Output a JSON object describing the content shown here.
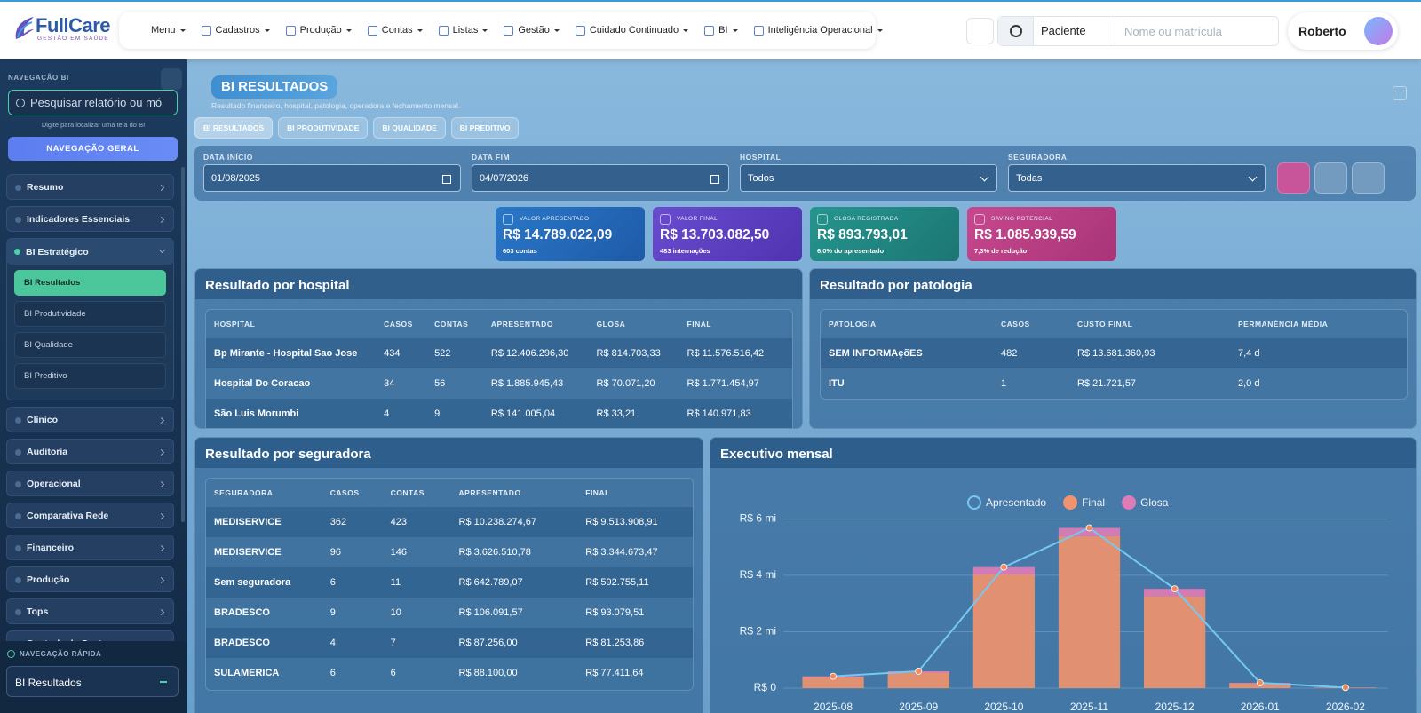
{
  "header": {
    "logo_name": "FullCare",
    "logo_tagline": "GESTÃO EM SAÚDE",
    "nav": [
      "Menu",
      "Cadastros",
      "Produção",
      "Contas",
      "Listas",
      "Gestão",
      "Cuidado Continuado",
      "BI",
      "Inteligência Operacional"
    ],
    "search_type": "Paciente",
    "search_placeholder": "Nome ou matrícula",
    "user": "Roberto"
  },
  "sidebar": {
    "title": "NAVEGAÇÃO BI",
    "search_placeholder": "Pesquisar relatório ou mó",
    "hint": "Digite para localizar uma tela do BI",
    "button": "NAVEGAÇÃO GERAL",
    "items": [
      {
        "label": "Resumo"
      },
      {
        "label": "Indicadores Essenciais"
      },
      {
        "label": "BI Estratégico",
        "children": [
          "BI Resultados",
          "BI Produtividade",
          "BI Qualidade",
          "BI Preditivo"
        ]
      },
      {
        "label": "Clínico"
      },
      {
        "label": "Auditoria"
      },
      {
        "label": "Operacional"
      },
      {
        "label": "Comparativa Rede"
      },
      {
        "label": "Financeiro"
      },
      {
        "label": "Produção"
      },
      {
        "label": "Tops"
      },
      {
        "label": "Controle de Gastos"
      }
    ],
    "quick_title": "NAVEGAÇÃO RÁPIDA",
    "quick_value": "BI Resultados"
  },
  "page": {
    "title": "BI RESULTADOS",
    "subtitle": "Resultado financeiro, hospital, patologia, operadora e fechamento mensal.",
    "tabs": [
      "BI RESULTADOS",
      "BI PRODUTIVIDADE",
      "BI QUALIDADE",
      "BI PREDITIVO"
    ]
  },
  "filters": [
    {
      "label": "DATA INÍCIO",
      "value": "01/08/2025"
    },
    {
      "label": "DATA FIM",
      "value": "04/07/2026"
    },
    {
      "label": "HOSPITAL",
      "value": "Todos"
    },
    {
      "label": "SEGURADORA",
      "value": "Todas"
    }
  ],
  "kpis": [
    {
      "label": "VALOR APRESENTADO",
      "value": "R$ 14.789.022,09",
      "note": "603 contas"
    },
    {
      "label": "VALOR FINAL",
      "value": "R$ 13.703.082,50",
      "note": "483 internações"
    },
    {
      "label": "GLOSA REGISTRADA",
      "value": "R$ 893.793,01",
      "note": "6,0% do apresentado"
    },
    {
      "label": "SAVING POTENCIAL",
      "value": "R$ 1.085.939,59",
      "note": "7,3% de redução"
    }
  ],
  "hospital_table": {
    "title": "Resultado por hospital",
    "columns": [
      "HOSPITAL",
      "CASOS",
      "CONTAS",
      "APRESENTADO",
      "GLOSA",
      "FINAL"
    ],
    "rows": [
      [
        "Bp Mirante - Hospital Sao Jose",
        "434",
        "522",
        "R$ 12.406.296,30",
        "R$ 814.703,33",
        "R$ 11.576.516,42"
      ],
      [
        "Hospital Do Coracao",
        "34",
        "56",
        "R$ 1.885.945,43",
        "R$ 70.071,20",
        "R$ 1.771.454,97"
      ],
      [
        "São Luis Morumbi",
        "4",
        "9",
        "R$ 141.005,04",
        "R$ 33,21",
        "R$ 140.971,83"
      ]
    ]
  },
  "patologia_table": {
    "title": "Resultado por patologia",
    "columns": [
      "PATOLOGIA",
      "CASOS",
      "CUSTO FINAL",
      "PERMANÊNCIA MÉDIA"
    ],
    "rows": [
      [
        "SEM INFORMAçõES",
        "482",
        "R$ 13.681.360,93",
        "7,4 d"
      ],
      [
        "ITU",
        "1",
        "R$ 21.721,57",
        "2,0 d"
      ]
    ]
  },
  "seguradora_table": {
    "title": "Resultado por seguradora",
    "columns": [
      "SEGURADORA",
      "CASOS",
      "CONTAS",
      "APRESENTADO",
      "FINAL"
    ],
    "rows": [
      [
        "MEDISERVICE",
        "362",
        "423",
        "R$ 10.238.274,67",
        "R$ 9.513.908,91"
      ],
      [
        "MEDISERVICE",
        "96",
        "146",
        "R$ 3.626.510,78",
        "R$ 3.344.673,47"
      ],
      [
        "Sem seguradora",
        "6",
        "11",
        "R$ 642.789,07",
        "R$ 592.755,11"
      ],
      [
        "BRADESCO",
        "9",
        "10",
        "R$ 106.091,57",
        "R$ 93.079,51"
      ],
      [
        "BRADESCO",
        "4",
        "7",
        "R$ 87.256,00",
        "R$ 81.253,86"
      ],
      [
        "SULAMERICA",
        "6",
        "6",
        "R$ 88.100,00",
        "R$ 77.411,64"
      ]
    ]
  },
  "chart_data": {
    "type": "bar",
    "title": "Executivo mensal",
    "stacked": true,
    "grid": true,
    "categories": [
      "2025-08",
      "2025-09",
      "2025-10",
      "2025-11",
      "2025-12",
      "2026-01",
      "2026-02"
    ],
    "series": [
      {
        "name": "Apresentado",
        "color": "#74c8f2",
        "type": "line",
        "values": [
          0.42,
          0.6,
          4.29,
          5.68,
          3.52,
          0.19,
          0.02
        ]
      },
      {
        "name": "Final",
        "color": "#f0936e",
        "values": [
          0.38,
          0.55,
          4.03,
          5.39,
          3.26,
          0.17,
          0.02
        ]
      },
      {
        "name": "Glosa",
        "color": "#de7cb6",
        "values": [
          0.04,
          0.05,
          0.26,
          0.29,
          0.26,
          0.02,
          0.0
        ]
      }
    ],
    "ylim": [
      0,
      6.2
    ],
    "yticks": [
      {
        "value": 0,
        "label": "R$ 0"
      },
      {
        "value": 2,
        "label": "R$ 2 mi"
      },
      {
        "value": 4,
        "label": "R$ 4 mi"
      },
      {
        "value": 6,
        "label": "R$ 6 mi"
      }
    ]
  }
}
